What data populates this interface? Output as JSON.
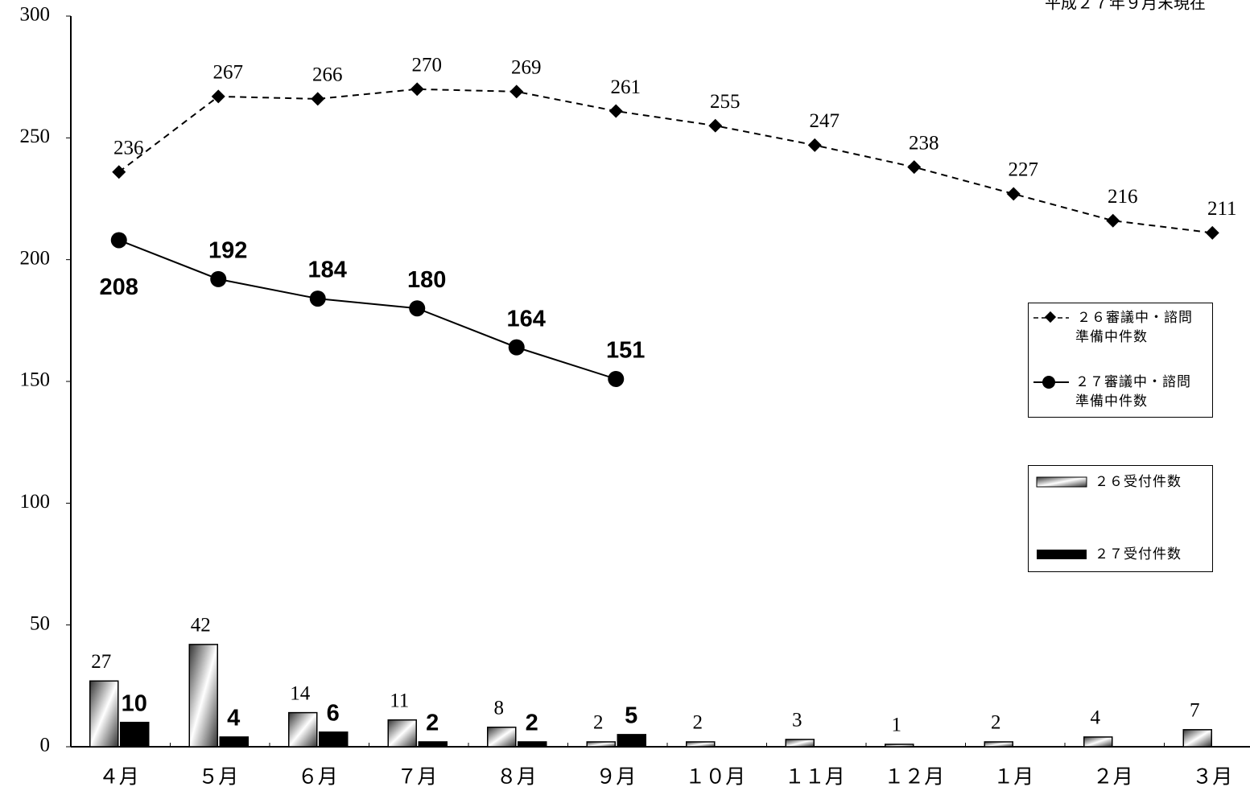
{
  "chart_data": {
    "type": "bar-line",
    "annotation": "平成２７年９月末現在",
    "categories": [
      "４月",
      "５月",
      "６月",
      "７月",
      "８月",
      "９月",
      "１０月",
      "１１月",
      "１２月",
      "１月",
      "２月",
      "３月"
    ],
    "series": [
      {
        "name": "２６審議中・諮問準備中件数",
        "type": "line",
        "dash": true,
        "marker": "diamond",
        "color": "#000000",
        "values": [
          236,
          267,
          266,
          270,
          269,
          261,
          255,
          247,
          238,
          227,
          216,
          211
        ]
      },
      {
        "name": "２７審議中・諮問準備中件数",
        "type": "line",
        "dash": false,
        "marker": "circle",
        "color": "#000000",
        "values": [
          208,
          192,
          184,
          180,
          164,
          151,
          null,
          null,
          null,
          null,
          null,
          null
        ]
      },
      {
        "name": "２６受付件数",
        "type": "bar",
        "color": "gradient",
        "values": [
          27,
          42,
          14,
          11,
          8,
          2,
          2,
          3,
          1,
          2,
          4,
          7
        ]
      },
      {
        "name": "２７受付件数",
        "type": "bar",
        "color": "#000000",
        "values": [
          10,
          4,
          6,
          2,
          2,
          5,
          null,
          null,
          null,
          null,
          null,
          null
        ]
      }
    ],
    "ylim": [
      0,
      300
    ],
    "yticks": [
      0,
      50,
      100,
      150,
      200,
      250,
      300
    ],
    "grid": false,
    "legend": "right"
  }
}
